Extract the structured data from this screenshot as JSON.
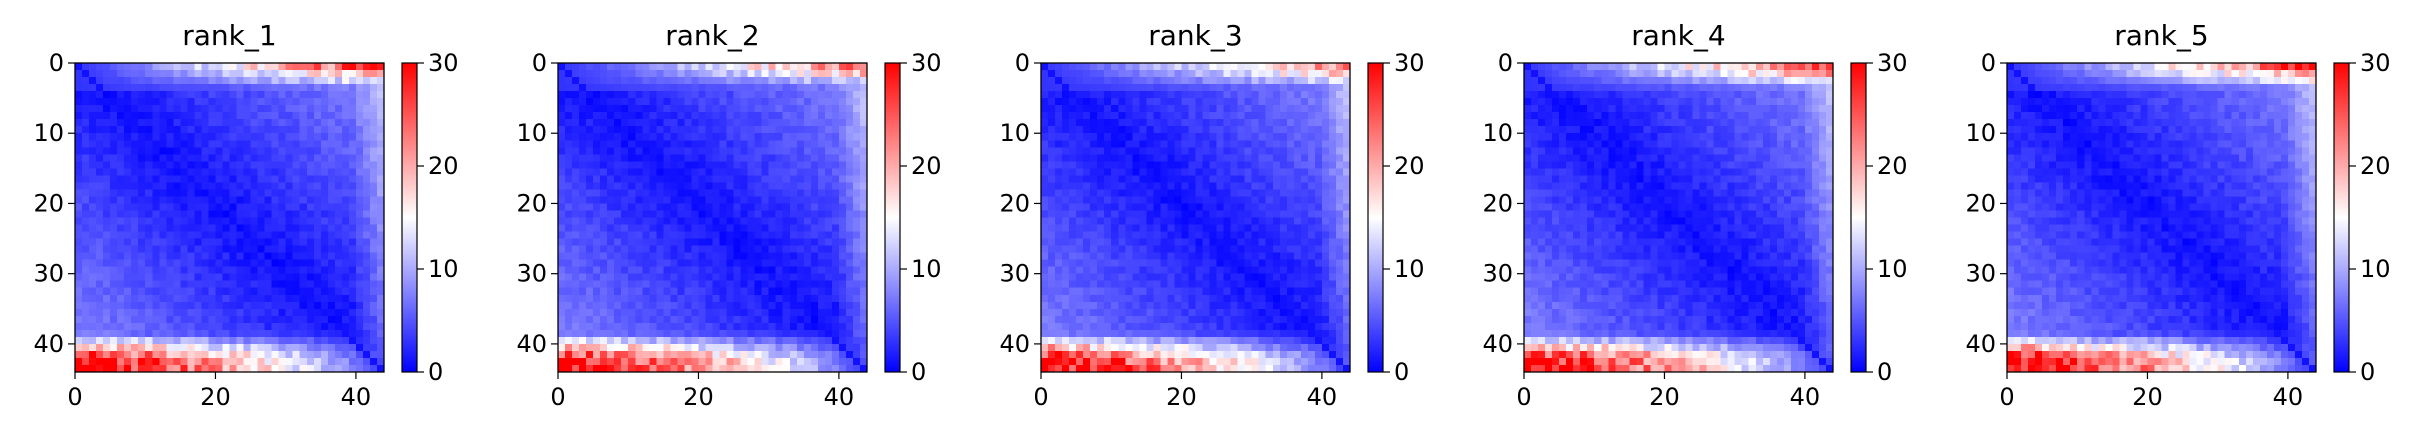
{
  "chart_data": [
    {
      "type": "heatmap",
      "title": "rank_1",
      "x_ticks": [
        0,
        20,
        40
      ],
      "y_ticks": [
        0,
        10,
        20,
        30,
        40
      ],
      "xlim": [
        0,
        44
      ],
      "ylim": [
        44,
        0
      ],
      "colorbar": {
        "ticks": [
          0,
          10,
          20,
          30
        ],
        "range": [
          0,
          30
        ],
        "cmap": "bwr"
      },
      "grid": false,
      "size": 44,
      "top_band_max": 26,
      "bottom_band_max": 30
    },
    {
      "type": "heatmap",
      "title": "rank_2",
      "x_ticks": [
        0,
        20,
        40
      ],
      "y_ticks": [
        0,
        10,
        20,
        30,
        40
      ],
      "xlim": [
        0,
        44
      ],
      "ylim": [
        44,
        0
      ],
      "colorbar": {
        "ticks": [
          0,
          10,
          20,
          30
        ],
        "range": [
          0,
          30
        ],
        "cmap": "bwr"
      },
      "grid": false,
      "size": 44,
      "top_band_max": 22,
      "bottom_band_max": 30
    },
    {
      "type": "heatmap",
      "title": "rank_3",
      "x_ticks": [
        0,
        20,
        40
      ],
      "y_ticks": [
        0,
        10,
        20,
        30,
        40
      ],
      "xlim": [
        0,
        44
      ],
      "ylim": [
        44,
        0
      ],
      "colorbar": {
        "ticks": [
          0,
          10,
          20,
          30
        ],
        "range": [
          0,
          30
        ],
        "cmap": "bwr"
      },
      "grid": false,
      "size": 44,
      "top_band_max": 22,
      "bottom_band_max": 30
    },
    {
      "type": "heatmap",
      "title": "rank_4",
      "x_ticks": [
        0,
        20,
        40
      ],
      "y_ticks": [
        0,
        10,
        20,
        30,
        40
      ],
      "xlim": [
        0,
        44
      ],
      "ylim": [
        44,
        0
      ],
      "colorbar": {
        "ticks": [
          0,
          10,
          20,
          30
        ],
        "range": [
          0,
          30
        ],
        "cmap": "bwr"
      },
      "grid": false,
      "size": 44,
      "top_band_max": 26,
      "bottom_band_max": 30
    },
    {
      "type": "heatmap",
      "title": "rank_5",
      "x_ticks": [
        0,
        20,
        40
      ],
      "y_ticks": [
        0,
        10,
        20,
        30,
        40
      ],
      "xlim": [
        0,
        44
      ],
      "ylim": [
        44,
        0
      ],
      "colorbar": {
        "ticks": [
          0,
          10,
          20,
          30
        ],
        "range": [
          0,
          30
        ],
        "cmap": "bwr"
      },
      "grid": false,
      "size": 44,
      "top_band_max": 26,
      "bottom_band_max": 30
    }
  ]
}
